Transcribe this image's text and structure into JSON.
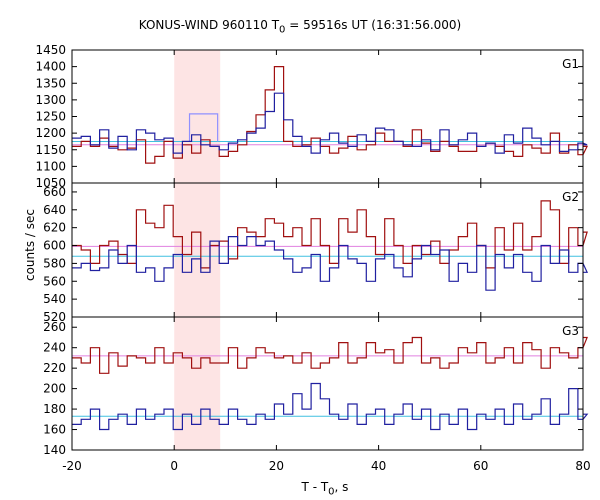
{
  "chart_data": {
    "type": "line",
    "title_prefix": "KONUS-WIND 960110 T",
    "title_sub": "0",
    "title_suffix": " = 59516s UT (16:31:56.000)",
    "xlabel_prefix": "T - T",
    "xlabel_sub": "0",
    "xlabel_suffix": ", s",
    "ylabel": "counts / sec",
    "xlim": [
      -20,
      80
    ],
    "xticks": [
      -20,
      0,
      20,
      40,
      60,
      80
    ],
    "bin_width": 1.8,
    "x_start": -20,
    "highlight": {
      "x0": 0,
      "x1": 9,
      "color": "#fde4e4"
    },
    "colors": {
      "red": "#a01010",
      "blue": "#2020a0",
      "bg_red": "#e080e0",
      "bg_blue": "#40c0e0",
      "burst": "#9090ff"
    },
    "panels": [
      {
        "name": "G1",
        "ylim": [
          1050,
          1450
        ],
        "yticks": [
          1050,
          1100,
          1150,
          1200,
          1250,
          1300,
          1350,
          1400,
          1450
        ],
        "bg_red": 1165,
        "bg_blue": 1175,
        "burst_level": {
          "x0": 3,
          "x1": 8.5,
          "y": 1258
        },
        "red": [
          1160,
          1175,
          1160,
          1185,
          1160,
          1150,
          1155,
          1180,
          1110,
          1130,
          1175,
          1125,
          1165,
          1140,
          1180,
          1160,
          1130,
          1145,
          1165,
          1205,
          1255,
          1330,
          1400,
          1175,
          1160,
          1165,
          1185,
          1160,
          1140,
          1155,
          1190,
          1150,
          1165,
          1200,
          1175,
          1175,
          1160,
          1210,
          1170,
          1145,
          1175,
          1160,
          1145,
          1145,
          1160,
          1170,
          1160,
          1145,
          1130,
          1165,
          1155,
          1140,
          1200,
          1140,
          1165,
          1135,
          1160
        ],
        "blue": [
          1185,
          1190,
          1165,
          1210,
          1155,
          1190,
          1150,
          1210,
          1200,
          1180,
          1185,
          1140,
          1175,
          1195,
          1165,
          1160,
          1150,
          1170,
          1180,
          1200,
          1215,
          1265,
          1320,
          1240,
          1190,
          1160,
          1140,
          1180,
          1200,
          1170,
          1160,
          1195,
          1175,
          1215,
          1210,
          1175,
          1165,
          1160,
          1180,
          1150,
          1210,
          1165,
          1180,
          1200,
          1160,
          1170,
          1140,
          1195,
          1170,
          1215,
          1185,
          1165,
          1175,
          1145,
          1150,
          1170,
          1165
        ]
      },
      {
        "name": "G2",
        "ylim": [
          520,
          670
        ],
        "yticks": [
          520,
          540,
          560,
          580,
          600,
          620,
          640,
          660
        ],
        "bg_red": 599,
        "bg_blue": 588,
        "red": [
          600,
          595,
          580,
          600,
          605,
          590,
          580,
          640,
          625,
          620,
          645,
          610,
          590,
          615,
          575,
          600,
          605,
          585,
          620,
          615,
          610,
          630,
          625,
          610,
          620,
          600,
          630,
          600,
          580,
          630,
          615,
          640,
          610,
          590,
          630,
          600,
          580,
          600,
          590,
          605,
          580,
          595,
          610,
          625,
          600,
          575,
          620,
          595,
          625,
          595,
          610,
          650,
          640,
          580,
          620,
          600,
          615
        ],
        "blue": [
          575,
          580,
          572,
          575,
          595,
          580,
          600,
          570,
          575,
          560,
          575,
          590,
          570,
          585,
          570,
          605,
          580,
          610,
          600,
          610,
          600,
          605,
          595,
          585,
          570,
          575,
          590,
          560,
          575,
          600,
          585,
          580,
          560,
          585,
          590,
          575,
          565,
          585,
          600,
          590,
          595,
          560,
          580,
          570,
          600,
          550,
          590,
          575,
          590,
          570,
          560,
          600,
          580,
          595,
          570,
          580,
          570
        ]
      },
      {
        "name": "G3",
        "ylim": [
          140,
          270
        ],
        "yticks": [
          140,
          160,
          180,
          200,
          220,
          240,
          260
        ],
        "bg_red": 232,
        "bg_blue": 173,
        "red": [
          230,
          225,
          240,
          215,
          235,
          222,
          232,
          230,
          225,
          240,
          225,
          235,
          230,
          220,
          230,
          225,
          225,
          240,
          220,
          230,
          240,
          235,
          230,
          232,
          225,
          235,
          220,
          225,
          230,
          245,
          225,
          230,
          245,
          235,
          238,
          225,
          245,
          250,
          225,
          230,
          220,
          225,
          240,
          235,
          245,
          225,
          230,
          240,
          225,
          245,
          238,
          220,
          240,
          235,
          230,
          240,
          250
        ],
        "blue": [
          165,
          170,
          180,
          160,
          170,
          175,
          165,
          180,
          170,
          175,
          180,
          160,
          175,
          165,
          180,
          170,
          165,
          180,
          170,
          165,
          175,
          170,
          185,
          175,
          195,
          180,
          205,
          190,
          175,
          170,
          185,
          165,
          175,
          180,
          165,
          175,
          185,
          170,
          180,
          160,
          175,
          165,
          180,
          160,
          175,
          170,
          180,
          165,
          185,
          170,
          175,
          190,
          165,
          175,
          200,
          170,
          175
        ]
      }
    ]
  }
}
